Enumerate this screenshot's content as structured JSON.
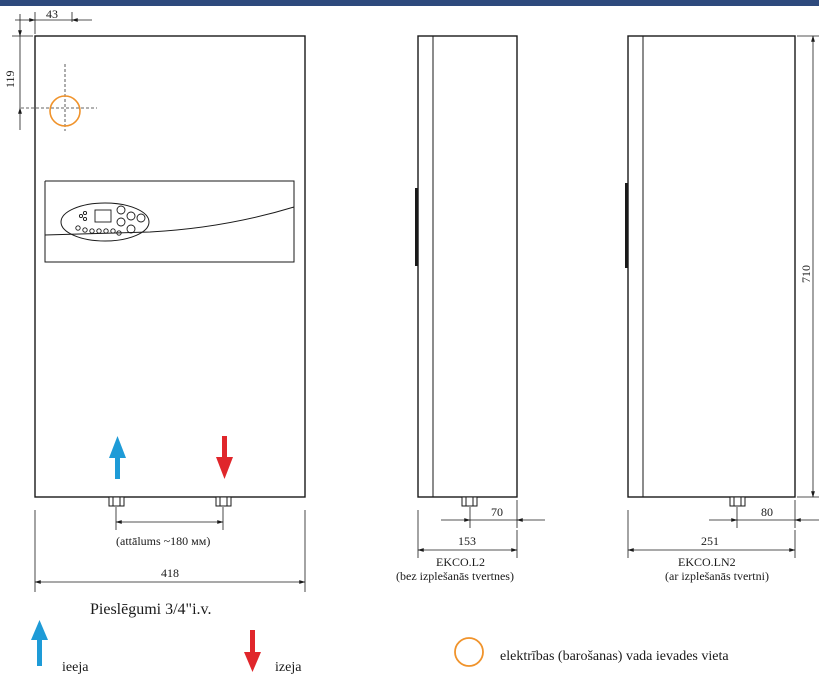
{
  "front_view": {
    "dim_offset_x": "43",
    "dim_offset_y": "119",
    "dim_width": "418",
    "spacing_note": "(attālums ~180 мм)",
    "connections": "Pieslēgumi 3/4\"i.v."
  },
  "side_view_l2": {
    "dim_depth": "153",
    "dim_pipe": "70",
    "model": "EKCO.L2",
    "note": "(bez izplešanās tvertnes)"
  },
  "side_view_ln2": {
    "dim_depth": "251",
    "dim_pipe": "80",
    "dim_height": "710",
    "model": "EKCO.LN2",
    "note": "(ar izplešanās tvertni)"
  },
  "legend": {
    "inlet": "ieeja",
    "outlet": "izeja",
    "power_entry": "elektrības (barošanas) vada ievades vieta"
  },
  "colors": {
    "top_bar": "#2e4a7d",
    "inlet_arrow": "#1e9bd7",
    "outlet_arrow": "#e0262b",
    "power_entry_circle": "#f0932b"
  }
}
